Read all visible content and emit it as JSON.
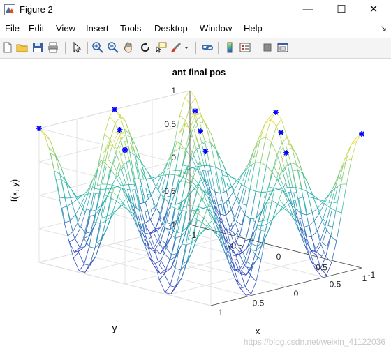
{
  "window": {
    "title": "Figure 2"
  },
  "controls": {
    "minimize": "—",
    "maximize": "☐",
    "close": "✕"
  },
  "menu": [
    "File",
    "Edit",
    "View",
    "Insert",
    "Tools",
    "Desktop",
    "Window",
    "Help"
  ],
  "toolbar": [
    "new-figure-icon",
    "open-icon",
    "save-icon",
    "print-icon",
    "select-arrow-icon",
    "zoom-in-icon",
    "zoom-out-icon",
    "pan-hand-icon",
    "rotate-3d-icon",
    "data-cursor-icon",
    "brush-icon",
    "link-plot-icon",
    "colorbar-icon",
    "legend-icon",
    "hide-plot-tools-icon",
    "show-plot-tools-icon"
  ],
  "colors": {
    "surface_low": "#3b3fc6",
    "surface_mid": "#2bb9b0",
    "surface_high": "#f0e03a",
    "markers": "#0000ff"
  },
  "watermark": "https://blog.csdn.net/weixin_41122036",
  "chart_data": {
    "type": "surface",
    "title": "ant final pos",
    "xlabel": "x",
    "ylabel": "y",
    "zlabel": "f(x, y)",
    "xlim": [
      -1,
      1
    ],
    "ylim": [
      -1,
      1
    ],
    "zlim": [
      -1,
      1
    ],
    "x_ticks": [
      "-1",
      "-0.5",
      "0",
      "0.5",
      "1"
    ],
    "y_ticks": [
      "-1",
      "-0.5",
      "0",
      "0.5",
      "1"
    ],
    "z_ticks": [
      "-1",
      "-0.5",
      "0",
      "0.5",
      "1"
    ],
    "grid": true,
    "surface": "f(x,y) = cos(2πx)·cos(2πy)",
    "markers": [
      {
        "x": -1,
        "y": 1,
        "z": 1
      },
      {
        "x": -1,
        "y": 0,
        "z": 1
      },
      {
        "x": 0,
        "y": 1,
        "z": 1
      },
      {
        "x": 0,
        "y": 0,
        "z": 1
      },
      {
        "x": -0.5,
        "y": 0.5,
        "z": 1
      },
      {
        "x": -0.5,
        "y": -0.5,
        "z": 1
      },
      {
        "x": 0.5,
        "y": 0.5,
        "z": 1
      },
      {
        "x": 0.5,
        "y": -0.5,
        "z": 1
      },
      {
        "x": 0,
        "y": -1,
        "z": 1
      },
      {
        "x": 1,
        "y": 0,
        "z": 1
      },
      {
        "x": 1,
        "y": -1,
        "z": 1
      }
    ]
  }
}
